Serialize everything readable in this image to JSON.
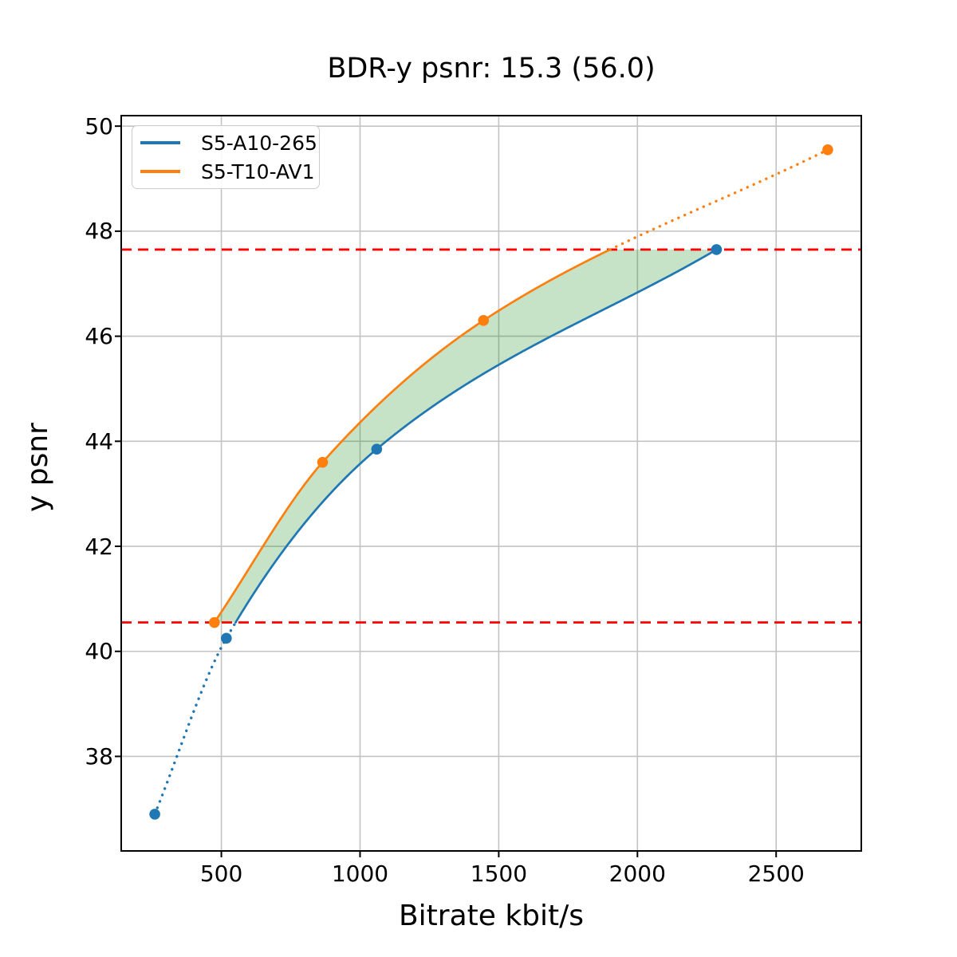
{
  "chart_data": {
    "type": "line",
    "title": "BDR-y psnr: 15.3 (56.0)",
    "xlabel": "Bitrate kbit/s",
    "ylabel": "y psnr",
    "xlim": [
      139,
      2807
    ],
    "ylim": [
      36.2,
      50.2
    ],
    "xticks": [
      500,
      1000,
      1500,
      2000,
      2500
    ],
    "yticks": [
      38,
      40,
      42,
      44,
      46,
      48,
      50
    ],
    "grid": true,
    "grid_color": "#c3c3c3",
    "legend_position": "upper left",
    "series": [
      {
        "name": "S5-A10-265",
        "color": "#1f77b4",
        "points": [
          [
            260,
            36.9
          ],
          [
            518,
            40.25
          ],
          [
            1060,
            43.85
          ],
          [
            2285,
            47.65
          ]
        ]
      },
      {
        "name": "S5-T10-AV1",
        "color": "#ff7f0e",
        "points": [
          [
            475,
            40.55
          ],
          [
            865,
            43.6
          ],
          [
            1445,
            46.3
          ],
          [
            2686,
            49.55
          ]
        ]
      }
    ],
    "overlap_interval": {
      "low": 40.55,
      "high": 47.65,
      "line_color": "#ff0000",
      "line_style": "dashed"
    },
    "fill_between_color": "rgba(0,128,0,0.22)",
    "curve_style_outside_overlap": "dotted"
  }
}
